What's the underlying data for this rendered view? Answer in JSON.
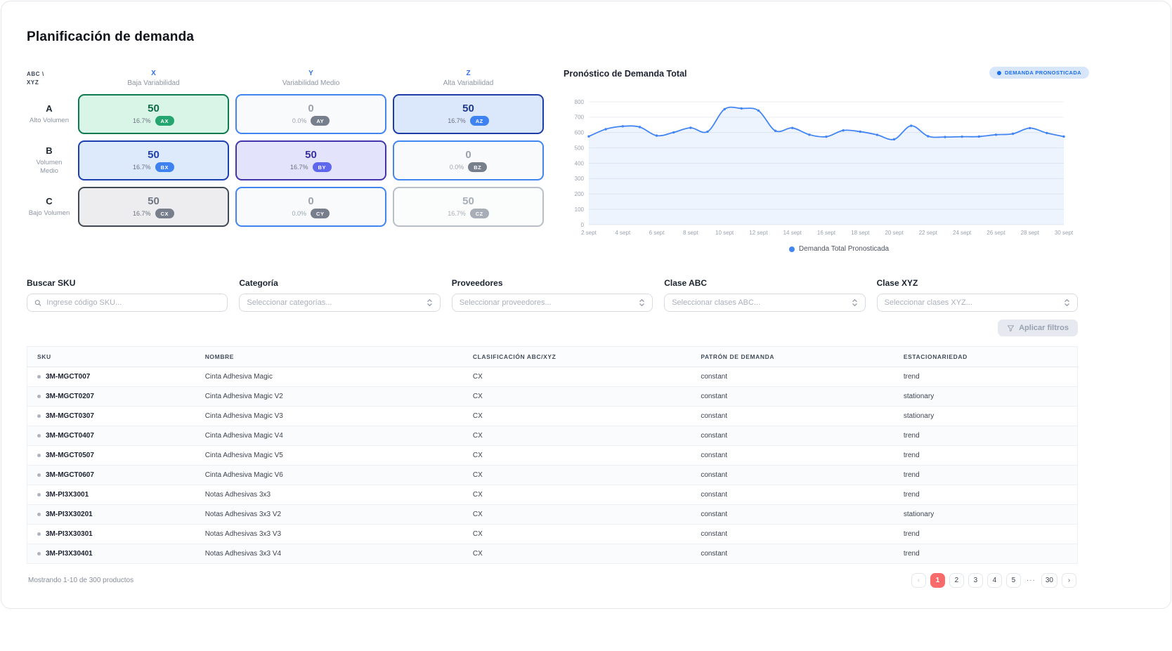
{
  "page": {
    "title": "Planificación de demanda"
  },
  "matrix": {
    "corner_line1": "ABC \\",
    "corner_line2": "XYZ",
    "columns": [
      {
        "letter": "X",
        "label": "Baja Variabilidad"
      },
      {
        "letter": "Y",
        "label": "Variabilidad Medio"
      },
      {
        "letter": "Z",
        "label": "Alta Variabilidad"
      }
    ],
    "rows": [
      {
        "letter": "A",
        "sub": "Alto Volumen"
      },
      {
        "letter": "B",
        "sub": "Volumen Medio"
      },
      {
        "letter": "C",
        "sub": "Bajo Volumen"
      }
    ],
    "cells": [
      {
        "code": "AX",
        "count": "50",
        "pct": "16.7%",
        "bg": "#d8f5e7",
        "border": "#0d7a50",
        "num_color": "#0e6b47",
        "pct_color": "#6b7280",
        "badge_bg": "#25a56f"
      },
      {
        "code": "AY",
        "count": "0",
        "pct": "0.0%",
        "bg": "#f8fafc",
        "border": "#4186f0",
        "num_color": "#9ca3af",
        "pct_color": "#9ca3af",
        "badge_bg": "#787f8c"
      },
      {
        "code": "AZ",
        "count": "50",
        "pct": "16.7%",
        "bg": "#dbe7fb",
        "border": "#1f3da6",
        "num_color": "#1e3a8a",
        "pct_color": "#6b7280",
        "badge_bg": "#3d82f0"
      },
      {
        "code": "BX",
        "count": "50",
        "pct": "16.7%",
        "bg": "#dceafc",
        "border": "#1d40b0",
        "num_color": "#1e40af",
        "pct_color": "#6b7280",
        "badge_bg": "#3d82f0"
      },
      {
        "code": "BY",
        "count": "50",
        "pct": "16.7%",
        "bg": "#e3e3fb",
        "border": "#4336ab",
        "num_color": "#3730a3",
        "pct_color": "#6b7280",
        "badge_bg": "#5f67ee"
      },
      {
        "code": "BZ",
        "count": "0",
        "pct": "0.0%",
        "bg": "#f8fafc",
        "border": "#4186f0",
        "num_color": "#9ca3af",
        "pct_color": "#9ca3af",
        "badge_bg": "#787f8c"
      },
      {
        "code": "CX",
        "count": "50",
        "pct": "16.7%",
        "bg": "#ededef",
        "border": "#424a56",
        "num_color": "#6e7683",
        "pct_color": "#6b7280",
        "badge_bg": "#787f8c"
      },
      {
        "code": "CY",
        "count": "0",
        "pct": "0.0%",
        "bg": "#f8fafc",
        "border": "#4186f0",
        "num_color": "#9ca3af",
        "pct_color": "#9ca3af",
        "badge_bg": "#787f8c"
      },
      {
        "code": "CZ",
        "count": "50",
        "pct": "16.7%",
        "bg": "#fbfcfc",
        "border": "#b9bfc9",
        "num_color": "#a8aeb8",
        "pct_color": "#a8aeb8",
        "badge_bg": "#a8aeb8"
      }
    ]
  },
  "chart": {
    "title": "Pronóstico de Demanda Total",
    "badge_label": "DEMANDA PRONOSTICADA",
    "legend_label": "Demanda Total Pronosticada"
  },
  "chart_data": {
    "type": "line",
    "title": "Pronóstico de Demanda Total",
    "x_tick_labels": [
      "2 sept",
      "4 sept",
      "6 sept",
      "8 sept",
      "10 sept",
      "12 sept",
      "14 sept",
      "16 sept",
      "18 sept",
      "20 sept",
      "22 sept",
      "24 sept",
      "26 sept",
      "28 sept",
      "30 sept"
    ],
    "x_tick_every": 2,
    "series": [
      {
        "name": "Demanda Total Pronosticada",
        "values": [
          575,
          622,
          641,
          636,
          580,
          601,
          631,
          606,
          752,
          757,
          743,
          611,
          630,
          586,
          573,
          614,
          606,
          585,
          556,
          644,
          576,
          571,
          573,
          574,
          586,
          592,
          629,
          597,
          574
        ]
      }
    ],
    "ylim": [
      0,
      800
    ],
    "ytick_step": 100,
    "grid": "horizontal",
    "legend_position": "bottom",
    "line_color": "#4285f4",
    "area_color": "rgba(66,133,244,0.09)",
    "grid_color": "#e9edf2",
    "axis_label_color": "#9aa2ae"
  },
  "filters": [
    {
      "label": "Buscar SKU",
      "placeholder": "Ingrese código SKU..."
    },
    {
      "label": "Categoría",
      "placeholder": "Seleccionar categorías..."
    },
    {
      "label": "Proveedores",
      "placeholder": "Seleccionar proveedores..."
    },
    {
      "label": "Clase ABC",
      "placeholder": "Seleccionar clases ABC..."
    },
    {
      "label": "Clase XYZ",
      "placeholder": "Seleccionar clases XYZ..."
    }
  ],
  "apply_button": {
    "label": "Aplicar filtros"
  },
  "table": {
    "columns": [
      "SKU",
      "NOMBRE",
      "CLASIFICACIÓN ABC/XYZ",
      "PATRÓN DE DEMANDA",
      "ESTACIONARIEDAD"
    ],
    "rows": [
      [
        "3M-MGCT007",
        "Cinta Adhesiva Magic",
        "CX",
        "constant",
        "trend"
      ],
      [
        "3M-MGCT0207",
        "Cinta Adhesiva Magic V2",
        "CX",
        "constant",
        "stationary"
      ],
      [
        "3M-MGCT0307",
        "Cinta Adhesiva Magic V3",
        "CX",
        "constant",
        "stationary"
      ],
      [
        "3M-MGCT0407",
        "Cinta Adhesiva Magic V4",
        "CX",
        "constant",
        "trend"
      ],
      [
        "3M-MGCT0507",
        "Cinta Adhesiva Magic V5",
        "CX",
        "constant",
        "trend"
      ],
      [
        "3M-MGCT0607",
        "Cinta Adhesiva Magic V6",
        "CX",
        "constant",
        "trend"
      ],
      [
        "3M-PI3X3001",
        "Notas Adhesivas 3x3",
        "CX",
        "constant",
        "trend"
      ],
      [
        "3M-PI3X30201",
        "Notas Adhesivas 3x3 V2",
        "CX",
        "constant",
        "stationary"
      ],
      [
        "3M-PI3X30301",
        "Notas Adhesivas 3x3 V3",
        "CX",
        "constant",
        "trend"
      ],
      [
        "3M-PI3X30401",
        "Notas Adhesivas 3x3 V4",
        "CX",
        "constant",
        "trend"
      ]
    ]
  },
  "pagination": {
    "summary": "Mostrando 1-10 de 300 productos",
    "prev": "‹",
    "next": "›",
    "pages": [
      "1",
      "2",
      "3",
      "4",
      "5"
    ],
    "ellipsis": "···",
    "last_page": "30",
    "active_page": "1",
    "active_color": "#f96b6b"
  }
}
